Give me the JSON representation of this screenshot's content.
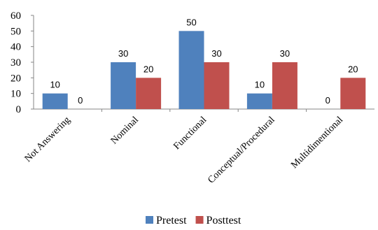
{
  "chart_data": {
    "type": "bar",
    "title": "",
    "xlabel": "",
    "ylabel": "",
    "categories": [
      "Not Answering",
      "Nominal",
      "Functional",
      "Conceptual/Procedural",
      "Multidimentional"
    ],
    "series": [
      {
        "name": "Pretest",
        "values": [
          10,
          30,
          50,
          10,
          0
        ],
        "color": "#4F81BD"
      },
      {
        "name": "Posttest",
        "values": [
          0,
          20,
          30,
          30,
          20
        ],
        "color": "#C0504D"
      }
    ],
    "ylim": [
      0,
      60
    ],
    "yticks": [
      0,
      10,
      20,
      30,
      40,
      50,
      60
    ],
    "grid": false,
    "data_labels": true,
    "legend_position": "bottom-center"
  }
}
